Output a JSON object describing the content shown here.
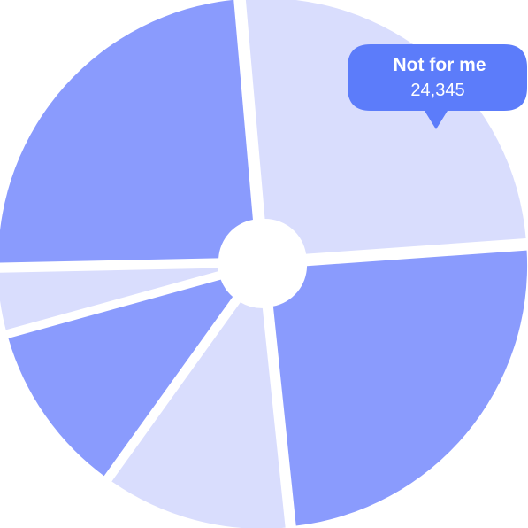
{
  "chart_data": {
    "type": "pie",
    "variant": "donut-with-exploded-slices",
    "start_angle_deg": -5,
    "slices": [
      {
        "name": "slice-1",
        "value": 96,
        "fill_color": "#d9ddfd"
      },
      {
        "name": "slice-2",
        "value": 93,
        "fill_color": "#8a9bfd"
      },
      {
        "name": "slice-3",
        "value": 44,
        "fill_color": "#d9ddfd"
      },
      {
        "name": "slice-4",
        "value": 41,
        "fill_color": "#8a9bfd"
      },
      {
        "name": "slice-5",
        "value": 15,
        "fill_color": "#d9ddfd"
      },
      {
        "name": "slice-6",
        "value": 91,
        "fill_color": "#8a9bfd"
      }
    ],
    "tooltip": {
      "label": "Not for me",
      "value": "24,345",
      "slice_index": 0,
      "bg_color": "#5c7cfa"
    }
  }
}
